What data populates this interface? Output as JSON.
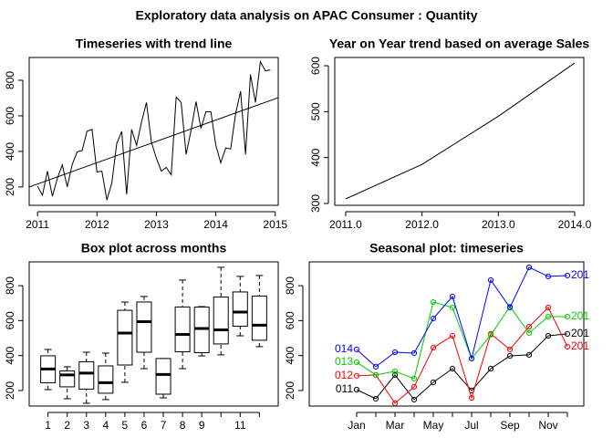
{
  "title": "Exploratory data analysis on APAC Consumer : Quantity",
  "chart_data": [
    {
      "type": "line",
      "title": "Timeseries with trend line",
      "xlim": [
        2010.86,
        2015.05
      ],
      "xticks": [
        2011,
        2012,
        2013,
        2014,
        2015
      ],
      "ylim": [
        97,
        928
      ],
      "yticks": [
        200,
        400,
        600,
        800
      ],
      "series": [
        {
          "color": "#000000",
          "x": [
            2011,
            2011.083,
            2011.167,
            2011.25,
            2011.333,
            2011.417,
            2011.5,
            2011.583,
            2011.667,
            2011.75,
            2011.833,
            2011.917,
            2012,
            2012.083,
            2012.167,
            2012.25,
            2012.333,
            2012.417,
            2012.5,
            2012.583,
            2012.667,
            2012.75,
            2012.833,
            2012.917,
            2013,
            2013.083,
            2013.167,
            2013.25,
            2013.333,
            2013.417,
            2013.5,
            2013.583,
            2013.667,
            2013.75,
            2013.833,
            2013.917,
            2014,
            2014.083,
            2014.167,
            2014.25,
            2014.333,
            2014.417,
            2014.5,
            2014.583,
            2014.667,
            2014.75,
            2014.833,
            2014.917
          ],
          "values": [
            205,
            153,
            289,
            148,
            247,
            325,
            200,
            325,
            398,
            404,
            513,
            524,
            284,
            289,
            127,
            221,
            445,
            513,
            158,
            524,
            435,
            565,
            675,
            451,
            362,
            289,
            310,
            268,
            706,
            675,
            383,
            518,
            680,
            529,
            623,
            623,
            435,
            336,
            419,
            414,
            612,
            738,
            383,
            832,
            675,
            905,
            853,
            858
          ]
        },
        {
          "color": "#000000",
          "x": [
            2010.86,
            2015.05
          ],
          "values": [
            200,
            702
          ]
        }
      ]
    },
    {
      "type": "line",
      "title": "Year on Year trend based on average Sales",
      "xlim": [
        2010.857,
        2014.12
      ],
      "xticks": [
        {
          "value": 2011,
          "label": "2011.0"
        },
        {
          "value": 2012,
          "label": "2012.0"
        },
        {
          "value": 2013,
          "label": "2013.0"
        },
        {
          "value": 2014,
          "label": "2014.0"
        }
      ],
      "ylim": [
        296,
        618
      ],
      "yticks": [
        300,
        400,
        500,
        600
      ],
      "series": [
        {
          "color": "#000000",
          "x": [
            2011,
            2012,
            2013,
            2014
          ],
          "values": [
            310,
            385,
            490,
            606
          ]
        }
      ]
    },
    {
      "type": "box",
      "title": "Box plot across months",
      "categories": [
        "1",
        "2",
        "3",
        "4",
        "5",
        "6",
        "7",
        "8",
        "9",
        null,
        "11",
        null
      ],
      "ylim": [
        111,
        936
      ],
      "yticks": [
        200,
        400,
        600,
        800
      ],
      "values": [
        [
          205,
          244.5,
          323,
          398.5,
          435
        ],
        [
          153,
          221,
          289,
          312.5,
          336
        ],
        [
          127,
          208,
          299.5,
          364.5,
          419
        ],
        [
          148,
          184.5,
          244.5,
          341,
          414
        ],
        [
          247,
          346,
          528.5,
          659,
          706
        ],
        [
          325,
          419,
          594,
          706.5,
          738
        ],
        [
          158,
          179,
          291.5,
          383,
          383
        ],
        [
          325,
          421.5,
          521,
          678,
          832
        ],
        [
          398,
          416.5,
          555,
          677.5,
          680
        ],
        [
          404,
          466.5,
          547,
          735,
          905
        ],
        [
          513,
          568,
          649,
          764,
          853
        ],
        [
          451,
          487.5,
          573.5,
          740.5,
          858
        ]
      ]
    },
    {
      "type": "seasonal",
      "title": "Seasonal plot: timeseries",
      "categories": [
        "Jan",
        null,
        "Mar",
        null,
        "May",
        null,
        "Jul",
        null,
        "Sep",
        null,
        "Nov",
        null
      ],
      "ylim": [
        111,
        936
      ],
      "yticks": [
        200,
        400,
        600,
        800
      ],
      "series": [
        {
          "start_label": "011",
          "end_label": "201",
          "color": "#000000",
          "values": [
            205,
            153,
            289,
            148,
            247,
            325,
            200,
            325,
            398,
            404,
            513,
            524
          ]
        },
        {
          "start_label": "012",
          "end_label": "201",
          "color": "#ff0000",
          "values": [
            284,
            289,
            127,
            221,
            445,
            513,
            158,
            524,
            435,
            565,
            675,
            451
          ]
        },
        {
          "start_label": "013",
          "end_label": "201",
          "color": "#00cd00",
          "values": [
            362,
            289,
            310,
            268,
            706,
            675,
            383,
            518,
            680,
            529,
            623,
            623
          ]
        },
        {
          "start_label": "014",
          "end_label": "201",
          "color": "#0000ff",
          "values": [
            435,
            336,
            419,
            414,
            612,
            738,
            383,
            832,
            675,
            905,
            853,
            858
          ]
        }
      ]
    }
  ]
}
